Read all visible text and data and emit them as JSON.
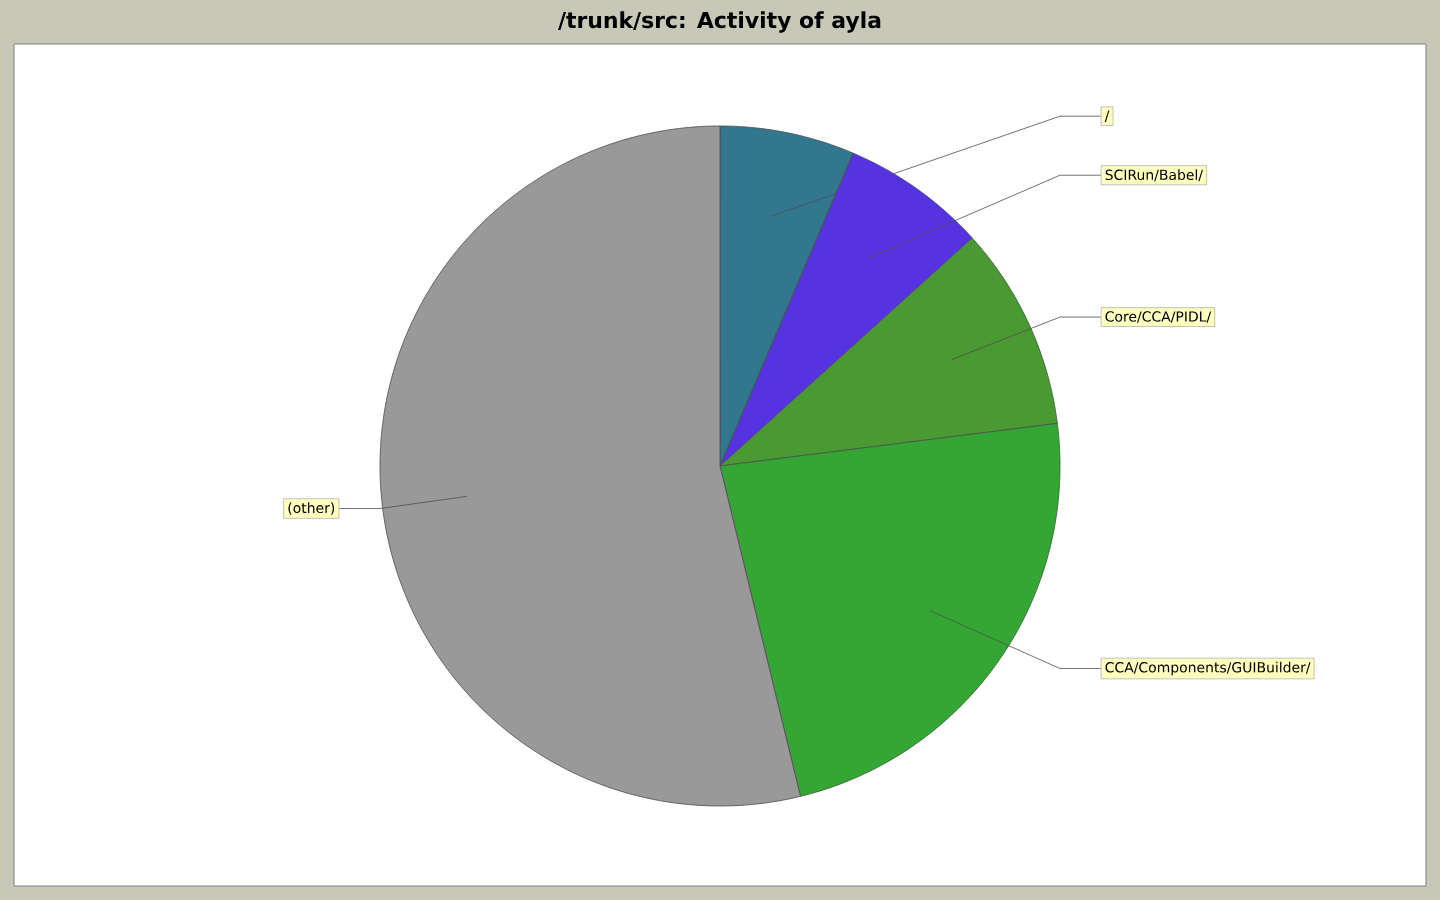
{
  "chart_data": {
    "type": "pie",
    "title": "/trunk/src: Activity of ayla",
    "categories": [
      "/",
      "SCIRun/Babel/",
      "Core/CCA/PIDL/",
      "CCA/Components/GUIBuilder/",
      "(other)"
    ],
    "values": [
      6.4,
      6.9,
      9.7,
      23.2,
      53.8
    ],
    "colors": [
      "#33778f",
      "#5533e0",
      "#4a9a33",
      "#33a633",
      "#999999"
    ]
  }
}
